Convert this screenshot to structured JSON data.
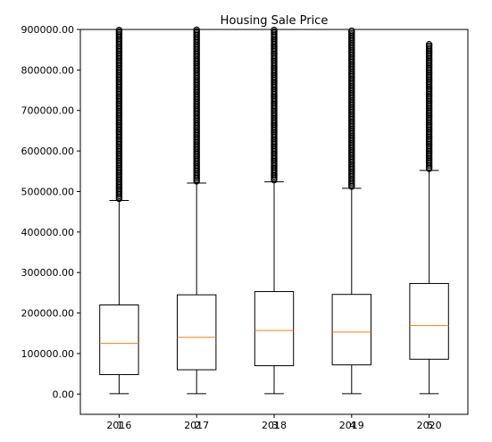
{
  "chart_data": {
    "type": "box",
    "title": "Housing Sale Price",
    "xlabel": "",
    "ylabel": "",
    "ylim": [
      -50000,
      900000
    ],
    "y_ticks": [
      0,
      100000,
      200000,
      300000,
      400000,
      500000,
      600000,
      700000,
      800000,
      900000
    ],
    "y_tick_labels": [
      "0.00",
      "100000.00",
      "200000.00",
      "300000.00",
      "400000.00",
      "500000.00",
      "600000.00",
      "700000.00",
      "800000.00",
      "900000.00"
    ],
    "categories": [
      "2016",
      "2017",
      "2018",
      "2019",
      "2020"
    ],
    "category_tick_labels": [
      "2016 1",
      "2017 2",
      "2018 3",
      "2019 4",
      "2020 5"
    ],
    "grid": false,
    "boxes": [
      {
        "category": "2016",
        "whisker_low": 1000,
        "q1": 48000,
        "median": 125000,
        "q3": 220000,
        "whisker_high": 478000,
        "outliers_from": 478000,
        "outliers_to": 900000
      },
      {
        "category": "2017",
        "whisker_low": 1000,
        "q1": 60000,
        "median": 140000,
        "q3": 245000,
        "whisker_high": 521000,
        "outliers_from": 521000,
        "outliers_to": 900000
      },
      {
        "category": "2018",
        "whisker_low": 1000,
        "q1": 70000,
        "median": 157000,
        "q3": 253000,
        "whisker_high": 524000,
        "outliers_from": 524000,
        "outliers_to": 900000
      },
      {
        "category": "2019",
        "whisker_low": 1000,
        "q1": 72000,
        "median": 153000,
        "q3": 246000,
        "whisker_high": 508000,
        "outliers_from": 508000,
        "outliers_to": 900000
      },
      {
        "category": "2020",
        "whisker_low": 1000,
        "q1": 86000,
        "median": 169000,
        "q3": 273000,
        "whisker_high": 552000,
        "outliers_from": 552000,
        "outliers_to": 865000
      }
    ],
    "colors": {
      "box": "#000000",
      "median": "#ff7f0e",
      "flier": "#000000"
    }
  }
}
